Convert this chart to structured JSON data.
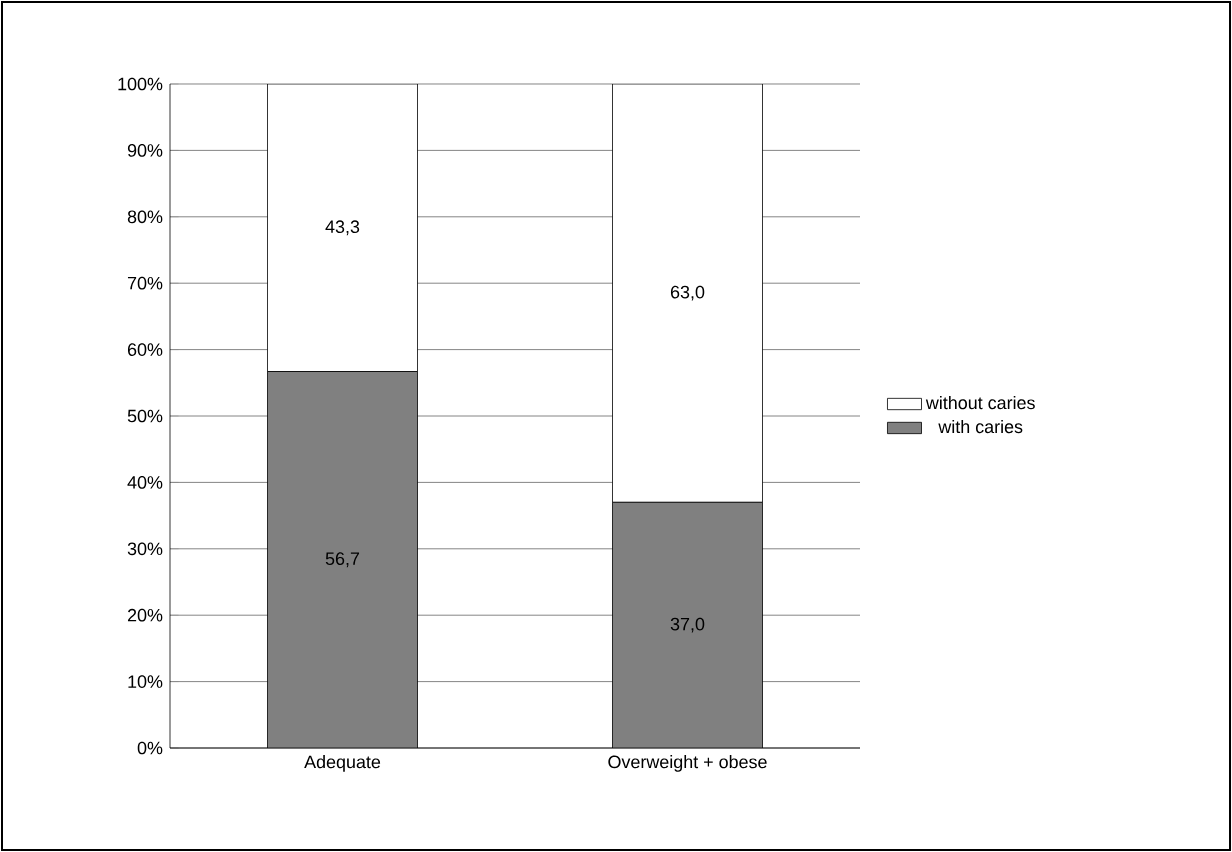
{
  "chart_data": {
    "type": "bar",
    "stacked": true,
    "categories": [
      "Adequate",
      "Overweight + obese"
    ],
    "series": [
      {
        "name": "with caries",
        "color": "#808080",
        "values": [
          56.7,
          37.0
        ],
        "value_labels": [
          "56,7",
          "37,0"
        ]
      },
      {
        "name": "without caries",
        "color": "#ffffff",
        "values": [
          43.3,
          63.0
        ],
        "value_labels": [
          "43,3",
          "63,0"
        ]
      }
    ],
    "ylim": [
      0,
      100
    ],
    "yticks": [
      {
        "value": 0,
        "label": "0%"
      },
      {
        "value": 10,
        "label": "10%"
      },
      {
        "value": 20,
        "label": "20%"
      },
      {
        "value": 30,
        "label": "30%"
      },
      {
        "value": 40,
        "label": "40%"
      },
      {
        "value": 50,
        "label": "50%"
      },
      {
        "value": 60,
        "label": "60%"
      },
      {
        "value": 70,
        "label": "70%"
      },
      {
        "value": 80,
        "label": "80%"
      },
      {
        "value": 90,
        "label": "90%"
      },
      {
        "value": 100,
        "label": "100%"
      }
    ],
    "grid": "y",
    "legend": "right"
  }
}
